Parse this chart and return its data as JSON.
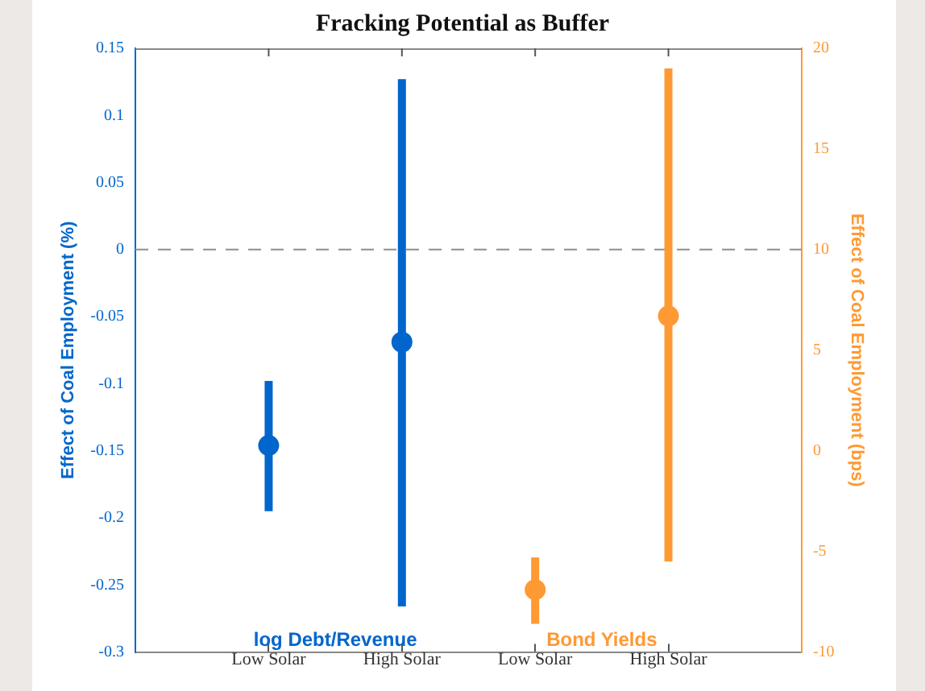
{
  "chart_data": {
    "type": "scatter",
    "title": "Fracking Potential as Buffer",
    "ylabel": "Effect of Coal Employment (%)",
    "y2label": "Effect of Coal Employment (bps)",
    "categories": [
      "Low Solar",
      "High Solar",
      "Low Solar",
      "High Solar"
    ],
    "series": [
      {
        "name": "log Debt/Revenue",
        "color": "#0066cc",
        "values": [
          -0.146,
          -0.069,
          null,
          null
        ],
        "errors": [
          [
            -0.195,
            -0.098
          ],
          [
            -0.266,
            0.127
          ],
          null,
          null
        ]
      },
      {
        "name": "Bond Yields",
        "color": "#ff9933",
        "axis": "y2",
        "values": [
          null,
          null,
          -6.9,
          6.7
        ],
        "errors": [
          null,
          null,
          [
            -8.6,
            -5.3
          ],
          [
            -5.5,
            19.0
          ]
        ]
      }
    ],
    "ylim": [
      -0.3,
      0.15
    ],
    "yticks": [
      -0.3,
      -0.25,
      -0.2,
      -0.15,
      -0.1,
      -0.05,
      0,
      0.05,
      0.1,
      0.15
    ],
    "y2lim": [
      -10,
      20
    ],
    "y2ticks": [
      -10,
      -5,
      0,
      5,
      10,
      15,
      20
    ],
    "ref_lines": [
      {
        "axis": "y",
        "value": 0,
        "color": "#999999",
        "line_style": "dashed"
      }
    ],
    "marker": "circle"
  }
}
